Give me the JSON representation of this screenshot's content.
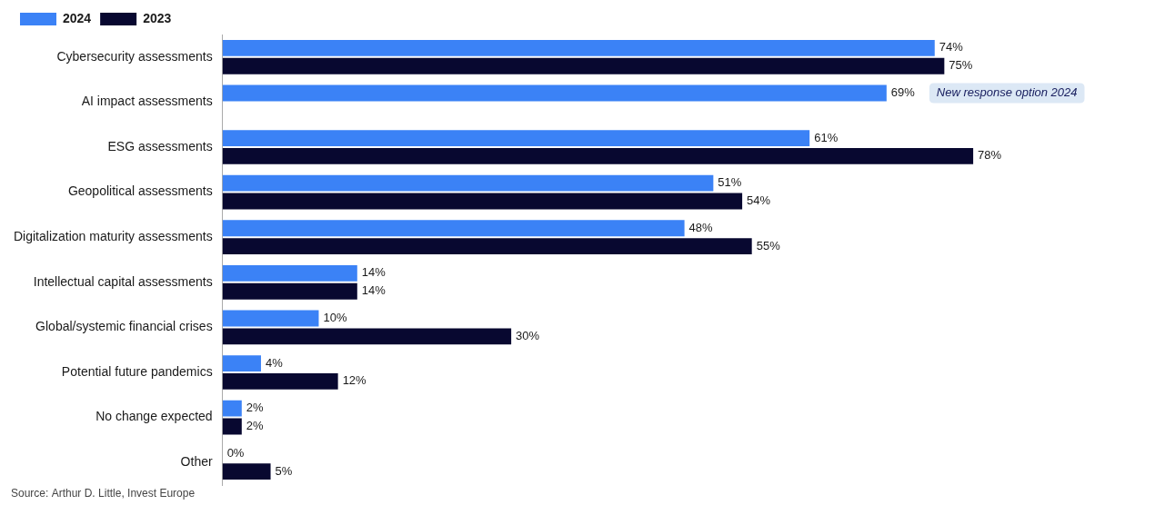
{
  "chart_data": {
    "type": "bar",
    "orientation": "horizontal",
    "categories": [
      "Cybersecurity assessments",
      "AI impact assessments",
      "ESG assessments",
      "Geopolitical assessments",
      "Digitalization maturity assessments",
      "Intellectual capital assessments",
      "Global/systemic financial crises",
      "Potential future pandemics",
      "No change expected",
      "Other"
    ],
    "series": [
      {
        "name": "2024",
        "color": "#3b82f6",
        "values": [
          74,
          69,
          61,
          51,
          48,
          14,
          10,
          4,
          2,
          0
        ],
        "value_labels": [
          "74%",
          "69%",
          "61%",
          "51%",
          "48%",
          "14%",
          "10%",
          "4%",
          "2%",
          "0%"
        ]
      },
      {
        "name": "2023",
        "color": "#080830",
        "values": [
          75,
          null,
          78,
          54,
          55,
          14,
          30,
          12,
          2,
          5
        ],
        "value_labels": [
          "75%",
          null,
          "78%",
          "54%",
          "55%",
          "14%",
          "30%",
          "12%",
          "2%",
          "5%"
        ]
      }
    ],
    "xlim": [
      0,
      95
    ],
    "grid": false,
    "legend": "upper left",
    "data_labels": true,
    "tick_labels": "y",
    "annotations": [
      {
        "text": "New response option 2024",
        "category": "AI impact assessments",
        "series": "2024",
        "color": "#dce8f5"
      },
      {
        "text": "Source: Arthur D. Little, Invest Europe"
      }
    ]
  }
}
